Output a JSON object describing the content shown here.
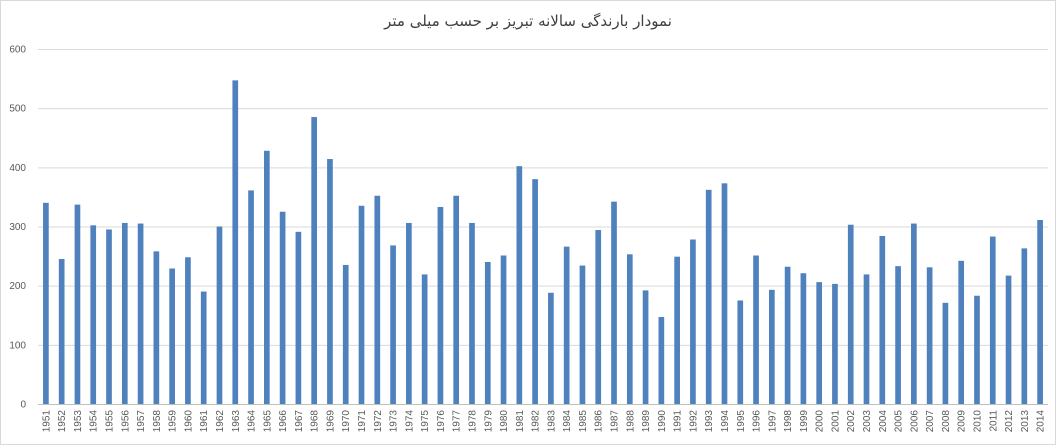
{
  "chart_data": {
    "type": "bar",
    "title": "نمودار بارندگی سالانه تبریز بر حسب میلی متر",
    "xlabel": "",
    "ylabel": "",
    "ylim": [
      0,
      600
    ],
    "yticks": [
      "0",
      "100",
      "200",
      "300",
      "400",
      "500",
      "600"
    ],
    "grid": true,
    "legend": "none",
    "bar_color": "#4f81bd",
    "categories": [
      "1951",
      "1952",
      "1953",
      "1954",
      "1955",
      "1956",
      "1957",
      "1958",
      "1959",
      "1960",
      "1961",
      "1962",
      "1963",
      "1964",
      "1965",
      "1966",
      "1967",
      "1968",
      "1969",
      "1970",
      "1971",
      "1972",
      "1973",
      "1974",
      "1975",
      "1976",
      "1977",
      "1978",
      "1979",
      "1980",
      "1981",
      "1982",
      "1983",
      "1984",
      "1985",
      "1986",
      "1987",
      "1988",
      "1989",
      "1990",
      "1991",
      "1992",
      "1993",
      "1994",
      "1995",
      "1996",
      "1997",
      "1998",
      "1999",
      "2000",
      "2001",
      "2002",
      "2003",
      "2004",
      "2005",
      "2006",
      "2007",
      "2008",
      "2009",
      "2010",
      "2011",
      "2012",
      "2013",
      "2014"
    ],
    "values": [
      340,
      245,
      337,
      302,
      295,
      306,
      305,
      258,
      229,
      248,
      190,
      300,
      547,
      361,
      428,
      325,
      291,
      485,
      414,
      235,
      335,
      352,
      268,
      306,
      219,
      333,
      352,
      306,
      240,
      251,
      402,
      380,
      188,
      266,
      234,
      294,
      342,
      253,
      192,
      147,
      249,
      278,
      362,
      373,
      175,
      251,
      193,
      232,
      221,
      206,
      203,
      303,
      219,
      284,
      233,
      305,
      231,
      171,
      242,
      183,
      283,
      217,
      263,
      311
    ]
  }
}
